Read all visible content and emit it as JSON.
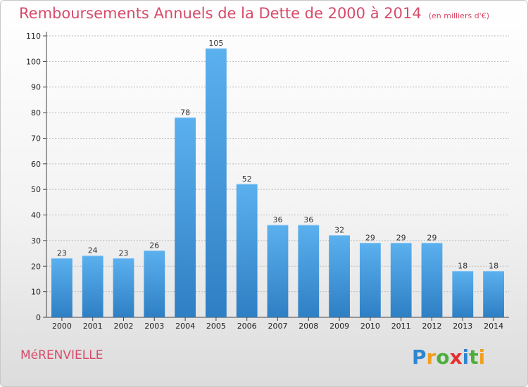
{
  "chart_data": {
    "type": "bar",
    "title": "Remboursements Annuels de la Dette de 2000 à 2014",
    "unit": "(en milliers d'€)",
    "categories": [
      "2000",
      "2001",
      "2002",
      "2003",
      "2004",
      "2005",
      "2006",
      "2007",
      "2008",
      "2009",
      "2010",
      "2011",
      "2012",
      "2013",
      "2014"
    ],
    "values": [
      23,
      24,
      23,
      26,
      78,
      105,
      52,
      36,
      36,
      32,
      29,
      29,
      29,
      18,
      18
    ],
    "ylim": [
      0,
      110
    ],
    "yticks": [
      0,
      10,
      20,
      30,
      40,
      50,
      60,
      70,
      80,
      90,
      100,
      110
    ],
    "grid": true,
    "bar_color": "#3d94d8",
    "bar_color_top": "#5bb0ee",
    "bar_color_bottom": "#2e7fc4"
  },
  "footer": {
    "commune": "MéRENVIELLE",
    "logo_text": "Proxiti"
  },
  "colors": {
    "title": "#d84a6a",
    "grid": "#bbbbbb"
  }
}
